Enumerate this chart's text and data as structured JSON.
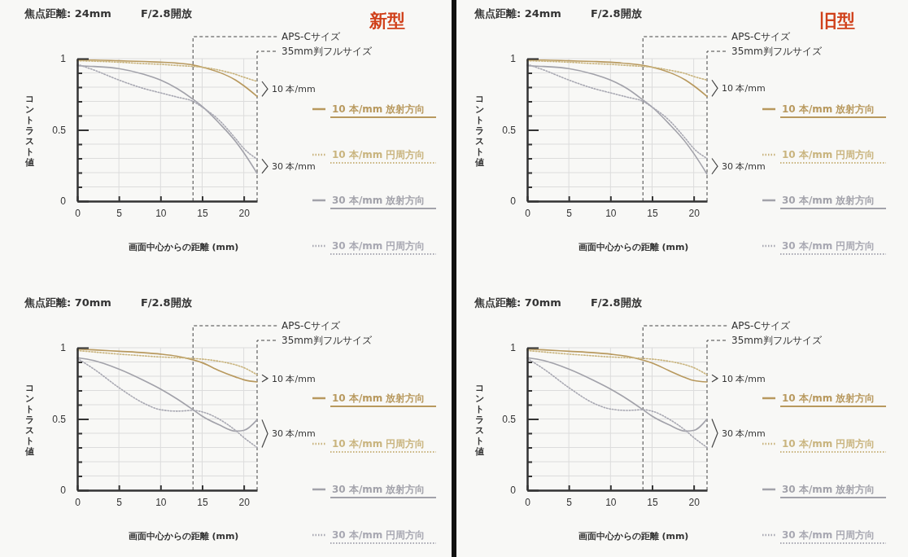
{
  "chart_data": [
    {
      "type": "line",
      "title": "焦点距離: 24mm",
      "subtitle": "F/2.8開放",
      "xlabel": "画面中心からの距離 (mm)",
      "ylabel": "コントラスト値",
      "xlim": [
        0,
        21.6
      ],
      "ylim": [
        0,
        1
      ],
      "xticks": [
        0,
        5,
        10,
        15,
        20
      ],
      "yticks": [
        0,
        {
          "value": 0.1,
          "label": null
        },
        {
          "value": 0.2,
          "label": null
        },
        {
          "value": 0.3,
          "label": null
        },
        {
          "value": 0.4,
          "label": null
        },
        0.5,
        {
          "value": 0.6,
          "label": null
        },
        {
          "value": 0.7,
          "label": null
        },
        {
          "value": 0.8,
          "label": null
        },
        {
          "value": 0.9,
          "label": null
        },
        1
      ],
      "grid": true,
      "legend": "right",
      "marker": "none",
      "ref_lines": [
        {
          "axis": "x",
          "value": 13.9,
          "label": "APS-Cサイズ",
          "line_style": "dashed"
        },
        {
          "axis": "x",
          "value": 21.6,
          "label": "35mm判フルサイズ",
          "line_style": "dashed"
        }
      ],
      "annotations": [
        "新型",
        "10 本/mm",
        "30 本/mm"
      ],
      "x": [
        0,
        2,
        5,
        8,
        10,
        12,
        13.9,
        15,
        17,
        19,
        20,
        21.6
      ],
      "series": [
        {
          "name": "10 本/mm 放射方向",
          "color": "#b8995e",
          "line_style": "solid",
          "values": [
            0.99,
            0.99,
            0.985,
            0.98,
            0.975,
            0.968,
            0.955,
            0.94,
            0.905,
            0.85,
            0.81,
            0.735
          ]
        },
        {
          "name": "10 本/mm 円周方向",
          "color": "#c9b47e",
          "line_style": "dotted",
          "values": [
            0.985,
            0.982,
            0.975,
            0.965,
            0.96,
            0.952,
            0.945,
            0.94,
            0.92,
            0.89,
            0.87,
            0.84
          ]
        },
        {
          "name": "30 本/mm 放射方向",
          "color": "#a2a2aa",
          "line_style": "solid",
          "values": [
            0.95,
            0.945,
            0.93,
            0.89,
            0.85,
            0.79,
            0.715,
            0.665,
            0.55,
            0.42,
            0.34,
            0.195
          ]
        },
        {
          "name": "30 本/mm 円周方向",
          "color": "#a8a8b2",
          "line_style": "dotted",
          "values": [
            0.96,
            0.92,
            0.85,
            0.79,
            0.76,
            0.73,
            0.7,
            0.66,
            0.57,
            0.44,
            0.37,
            0.295
          ]
        }
      ]
    },
    {
      "type": "line",
      "title": "焦点距離: 24mm",
      "subtitle": "F/2.8開放",
      "xlabel": "画面中心からの距離 (mm)",
      "ylabel": "コントラスト値",
      "xlim": [
        0,
        21.6
      ],
      "ylim": [
        0,
        1
      ],
      "xticks": [
        0,
        5,
        10,
        15,
        20
      ],
      "yticks": [
        0,
        {
          "value": 0.1,
          "label": null
        },
        {
          "value": 0.2,
          "label": null
        },
        {
          "value": 0.3,
          "label": null
        },
        {
          "value": 0.4,
          "label": null
        },
        0.5,
        {
          "value": 0.6,
          "label": null
        },
        {
          "value": 0.7,
          "label": null
        },
        {
          "value": 0.8,
          "label": null
        },
        {
          "value": 0.9,
          "label": null
        },
        1
      ],
      "grid": true,
      "legend": "right",
      "marker": "none",
      "ref_lines": [
        {
          "axis": "x",
          "value": 13.9,
          "label": "APS-Cサイズ",
          "line_style": "dashed"
        },
        {
          "axis": "x",
          "value": 21.6,
          "label": "35mm判フルサイズ",
          "line_style": "dashed"
        }
      ],
      "annotations": [
        "旧型",
        "10 本/mm",
        "30 本/mm"
      ],
      "x": [
        0,
        2,
        5,
        8,
        10,
        12,
        13.9,
        15,
        17,
        19,
        20,
        21.6
      ],
      "series": [
        {
          "name": "10 本/mm 放射方向",
          "color": "#b8995e",
          "line_style": "solid",
          "values": [
            0.99,
            0.99,
            0.985,
            0.98,
            0.975,
            0.966,
            0.953,
            0.94,
            0.905,
            0.85,
            0.81,
            0.735
          ]
        },
        {
          "name": "10 本/mm 円周方向",
          "color": "#c9b47e",
          "line_style": "dotted",
          "values": [
            0.985,
            0.982,
            0.975,
            0.965,
            0.96,
            0.952,
            0.945,
            0.94,
            0.92,
            0.895,
            0.875,
            0.85
          ]
        },
        {
          "name": "30 本/mm 放射方向",
          "color": "#a2a2aa",
          "line_style": "solid",
          "values": [
            0.95,
            0.945,
            0.93,
            0.89,
            0.85,
            0.79,
            0.71,
            0.66,
            0.545,
            0.415,
            0.335,
            0.19
          ]
        },
        {
          "name": "30 本/mm 円周方向",
          "color": "#a8a8b2",
          "line_style": "dotted",
          "values": [
            0.96,
            0.92,
            0.85,
            0.79,
            0.76,
            0.73,
            0.7,
            0.66,
            0.57,
            0.44,
            0.37,
            0.3
          ]
        }
      ]
    },
    {
      "type": "line",
      "title": "焦点距離: 70mm",
      "subtitle": "F/2.8開放",
      "xlabel": "画面中心からの距離 (mm)",
      "ylabel": "コントラスト値",
      "xlim": [
        0,
        21.6
      ],
      "ylim": [
        0,
        1
      ],
      "xticks": [
        0,
        5,
        10,
        15,
        20
      ],
      "yticks": [
        0,
        {
          "value": 0.1,
          "label": null
        },
        {
          "value": 0.2,
          "label": null
        },
        {
          "value": 0.3,
          "label": null
        },
        {
          "value": 0.4,
          "label": null
        },
        0.5,
        {
          "value": 0.6,
          "label": null
        },
        {
          "value": 0.7,
          "label": null
        },
        {
          "value": 0.8,
          "label": null
        },
        {
          "value": 0.9,
          "label": null
        },
        1
      ],
      "grid": true,
      "legend": "right",
      "marker": "none",
      "ref_lines": [
        {
          "axis": "x",
          "value": 13.9,
          "label": "APS-Cサイズ",
          "line_style": "dashed"
        },
        {
          "axis": "x",
          "value": 21.6,
          "label": "35mm判フルサイズ",
          "line_style": "dashed"
        }
      ],
      "annotations": [
        "10 本/mm",
        "30 本/mm"
      ],
      "x": [
        0,
        2,
        5,
        8,
        10,
        12,
        13.9,
        15,
        17,
        19,
        20,
        21.6
      ],
      "series": [
        {
          "name": "10 本/mm 放射方向",
          "color": "#b8995e",
          "line_style": "solid",
          "values": [
            0.99,
            0.985,
            0.975,
            0.965,
            0.955,
            0.94,
            0.915,
            0.895,
            0.84,
            0.795,
            0.775,
            0.76
          ]
        },
        {
          "name": "10 本/mm 円周方向",
          "color": "#c9b47e",
          "line_style": "dotted",
          "values": [
            0.98,
            0.97,
            0.955,
            0.943,
            0.935,
            0.93,
            0.925,
            0.92,
            0.905,
            0.88,
            0.86,
            0.81
          ]
        },
        {
          "name": "30 本/mm 放射方向",
          "color": "#a2a2aa",
          "line_style": "solid",
          "values": [
            0.93,
            0.91,
            0.85,
            0.77,
            0.71,
            0.64,
            0.565,
            0.52,
            0.46,
            0.415,
            0.42,
            0.495
          ]
        },
        {
          "name": "30 本/mm 円周方向",
          "color": "#a8a8b2",
          "line_style": "dotted",
          "values": [
            0.925,
            0.85,
            0.72,
            0.61,
            0.565,
            0.555,
            0.56,
            0.55,
            0.5,
            0.42,
            0.37,
            0.3
          ]
        }
      ]
    },
    {
      "type": "line",
      "title": "焦点距離: 70mm",
      "subtitle": "F/2.8開放",
      "xlabel": "画面中心からの距離 (mm)",
      "ylabel": "コントラスト値",
      "xlim": [
        0,
        21.6
      ],
      "ylim": [
        0,
        1
      ],
      "xticks": [
        0,
        5,
        10,
        15,
        20
      ],
      "yticks": [
        0,
        {
          "value": 0.1,
          "label": null
        },
        {
          "value": 0.2,
          "label": null
        },
        {
          "value": 0.3,
          "label": null
        },
        {
          "value": 0.4,
          "label": null
        },
        0.5,
        {
          "value": 0.6,
          "label": null
        },
        {
          "value": 0.7,
          "label": null
        },
        {
          "value": 0.8,
          "label": null
        },
        {
          "value": 0.9,
          "label": null
        },
        1
      ],
      "grid": true,
      "legend": "right",
      "marker": "none",
      "ref_lines": [
        {
          "axis": "x",
          "value": 13.9,
          "label": "APS-Cサイズ",
          "line_style": "dashed"
        },
        {
          "axis": "x",
          "value": 21.6,
          "label": "35mm判フルサイズ",
          "line_style": "dashed"
        }
      ],
      "annotations": [
        "10 本/mm",
        "30 本/mm"
      ],
      "x": [
        0,
        2,
        5,
        8,
        10,
        12,
        13.9,
        15,
        17,
        19,
        20,
        21.6
      ],
      "series": [
        {
          "name": "10 本/mm 放射方向",
          "color": "#b8995e",
          "line_style": "solid",
          "values": [
            0.99,
            0.985,
            0.975,
            0.965,
            0.955,
            0.94,
            0.913,
            0.893,
            0.84,
            0.79,
            0.77,
            0.76
          ]
        },
        {
          "name": "10 本/mm 円周方向",
          "color": "#c9b47e",
          "line_style": "dotted",
          "values": [
            0.98,
            0.97,
            0.955,
            0.943,
            0.935,
            0.93,
            0.925,
            0.92,
            0.905,
            0.88,
            0.86,
            0.81
          ]
        },
        {
          "name": "30 本/mm 放射方向",
          "color": "#a2a2aa",
          "line_style": "solid",
          "values": [
            0.93,
            0.91,
            0.85,
            0.77,
            0.71,
            0.64,
            0.565,
            0.52,
            0.46,
            0.415,
            0.42,
            0.5
          ]
        },
        {
          "name": "30 本/mm 円周方向",
          "color": "#a8a8b2",
          "line_style": "dotted",
          "values": [
            0.925,
            0.85,
            0.72,
            0.61,
            0.57,
            0.56,
            0.565,
            0.555,
            0.5,
            0.42,
            0.37,
            0.3
          ]
        }
      ]
    }
  ]
}
